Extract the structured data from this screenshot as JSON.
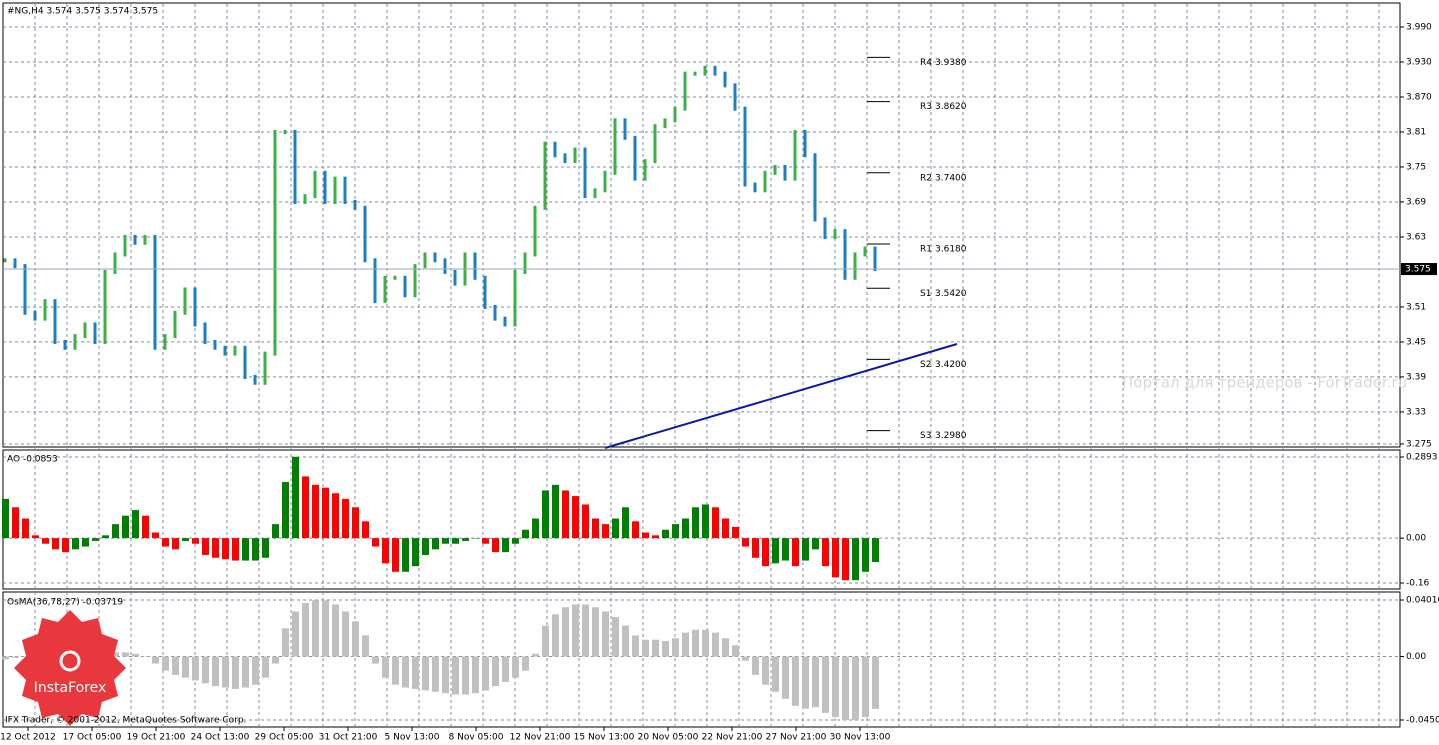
{
  "header": "#NG,H4  3.574 3.575 3.574 3.575",
  "price_panel": {
    "type": "bar",
    "ylim": [
      3.275,
      3.99
    ],
    "yticks": [
      {
        "value": 3.99,
        "label": "3.990"
      },
      {
        "value": 3.93,
        "label": "3.930"
      },
      {
        "value": 3.87,
        "label": "3.870"
      },
      3.81,
      3.75,
      3.69,
      3.63,
      3.51,
      3.45,
      3.39,
      3.33,
      3.275
    ],
    "current": 3.575,
    "up_color": "#3cb043",
    "down_color": "#1b7fc4",
    "closes": [
      3.59,
      3.58,
      3.5,
      3.49,
      3.52,
      3.45,
      3.44,
      3.46,
      3.48,
      3.45,
      3.57,
      3.6,
      3.63,
      3.62,
      3.63,
      3.44,
      3.46,
      3.5,
      3.54,
      3.48,
      3.45,
      3.44,
      3.43,
      3.44,
      3.39,
      3.38,
      3.43,
      3.81,
      3.81,
      3.69,
      3.7,
      3.74,
      3.69,
      3.73,
      3.69,
      3.68,
      3.59,
      3.52,
      3.56,
      3.56,
      3.53,
      3.58,
      3.6,
      3.59,
      3.57,
      3.55,
      3.6,
      3.56,
      3.51,
      3.49,
      3.48,
      3.57,
      3.6,
      3.68,
      3.79,
      3.77,
      3.76,
      3.78,
      3.7,
      3.71,
      3.74,
      3.83,
      3.8,
      3.73,
      3.76,
      3.82,
      3.83,
      3.85,
      3.91,
      3.91,
      3.92,
      3.91,
      3.89,
      3.85,
      3.72,
      3.71,
      3.74,
      3.75,
      3.73,
      3.81,
      3.77,
      3.66,
      3.63,
      3.64,
      3.56,
      3.6,
      3.61,
      3.575
    ],
    "pivots": [
      {
        "name": "R4",
        "value": 3.938,
        "label": "3.9380"
      },
      {
        "name": "R3",
        "value": 3.862,
        "label": "3.8620"
      },
      {
        "name": "R2",
        "value": 3.74,
        "label": "3.7400"
      },
      {
        "name": "R1",
        "value": 3.618,
        "label": "3.6180"
      },
      {
        "name": "S1",
        "value": 3.542,
        "label": "3.5420"
      },
      {
        "name": "S2",
        "value": 3.42,
        "label": "3.4200"
      },
      {
        "name": "S3",
        "value": 3.298,
        "label": "3.2980"
      }
    ],
    "watermark": "Портал для трейдеров - ForTrader.ru"
  },
  "ao_panel": {
    "type": "bar",
    "title": "AO -0.0853",
    "ylim": [
      -0.16,
      0.2893
    ],
    "yticks": [
      0.2893,
      {
        "value": 0,
        "label": "0.00"
      },
      -0.16
    ],
    "up_color": "#008000",
    "down_color": "#ff0000",
    "values": [
      0.14,
      0.11,
      0.07,
      0.01,
      -0.02,
      -0.04,
      -0.05,
      -0.04,
      -0.03,
      -0.01,
      0.01,
      0.05,
      0.08,
      0.1,
      0.08,
      0.02,
      -0.03,
      -0.04,
      -0.01,
      -0.02,
      -0.06,
      -0.07,
      -0.075,
      -0.08,
      -0.08,
      -0.08,
      -0.07,
      0.05,
      0.2,
      0.29,
      0.22,
      0.19,
      0.18,
      0.16,
      0.14,
      0.11,
      0.06,
      -0.03,
      -0.09,
      -0.12,
      -0.12,
      -0.1,
      -0.06,
      -0.04,
      -0.02,
      -0.02,
      -0.01,
      0.0,
      -0.02,
      -0.05,
      -0.05,
      -0.02,
      0.03,
      0.07,
      0.17,
      0.19,
      0.17,
      0.15,
      0.12,
      0.07,
      0.05,
      0.07,
      0.11,
      0.06,
      0.02,
      0.01,
      0.03,
      0.05,
      0.07,
      0.11,
      0.12,
      0.11,
      0.07,
      0.04,
      -0.03,
      -0.07,
      -0.1,
      -0.09,
      -0.08,
      -0.1,
      -0.08,
      -0.04,
      -0.1,
      -0.14,
      -0.15,
      -0.15,
      -0.12,
      -0.0853
    ]
  },
  "osma_panel": {
    "type": "bar",
    "title": "OsMA(36,78,27) -0.03719",
    "ylim": [
      -0.04505,
      0.04016
    ],
    "yticks": [
      0.04016,
      {
        "value": 0,
        "label": "0.00"
      },
      -0.04505
    ],
    "color": "#c0c0c0",
    "values": [
      -0.002,
      -0.001,
      0.0,
      0.0,
      0.001,
      0.002,
      0.002,
      0.003,
      0.003,
      0.003,
      0.002,
      0.003,
      0.003,
      0.002,
      0.0,
      -0.005,
      -0.01,
      -0.013,
      -0.015,
      -0.017,
      -0.019,
      -0.021,
      -0.022,
      -0.023,
      -0.022,
      -0.02,
      -0.015,
      -0.005,
      0.02,
      0.032,
      0.038,
      0.04,
      0.04,
      0.037,
      0.032,
      0.025,
      0.015,
      -0.005,
      -0.015,
      -0.02,
      -0.022,
      -0.023,
      -0.024,
      -0.025,
      -0.026,
      -0.027,
      -0.027,
      -0.026,
      -0.024,
      -0.021,
      -0.018,
      -0.015,
      -0.01,
      0.002,
      0.022,
      0.03,
      0.035,
      0.037,
      0.037,
      0.035,
      0.032,
      0.028,
      0.022,
      0.015,
      0.012,
      0.012,
      0.011,
      0.013,
      0.017,
      0.019,
      0.019,
      0.017,
      0.013,
      0.008,
      -0.003,
      -0.013,
      -0.02,
      -0.025,
      -0.03,
      -0.035,
      -0.037,
      -0.036,
      -0.04,
      -0.043,
      -0.045,
      -0.045,
      -0.043,
      -0.03719
    ]
  },
  "x_labels": [
    "12 Oct 2012",
    "17 Oct 05:00",
    "19 Oct 21:00",
    "24 Oct 13:00",
    "29 Oct 05:00",
    "31 Oct 21:00",
    "5 Nov 13:00",
    "8 Nov 05:00",
    "12 Nov 21:00",
    "15 Nov 13:00",
    "20 Nov 05:00",
    "22 Nov 21:00",
    "27 Nov 21:00",
    "30 Nov 13:00"
  ],
  "footer": "IFX Trader, © 2001-2012, MetaQuotes Software Corp.",
  "logo": "InstaForex"
}
